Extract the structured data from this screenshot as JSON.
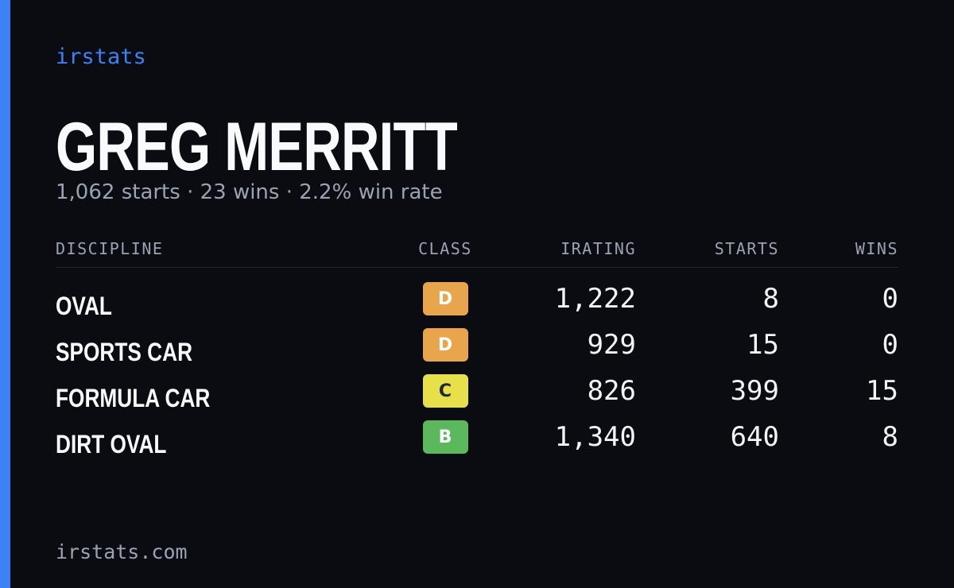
{
  "brand": "irstats",
  "player": {
    "name": "GREG MERRITT",
    "summary": "1,062 starts · 23 wins · 2.2% win rate"
  },
  "table": {
    "headers": [
      "DISCIPLINE",
      "CLASS",
      "IRATING",
      "STARTS",
      "WINS"
    ],
    "rows": [
      [
        "OVAL",
        "D",
        "1,222",
        "8",
        "0"
      ],
      [
        "SPORTS CAR",
        "D",
        "929",
        "15",
        "0"
      ],
      [
        "FORMULA CAR",
        "C",
        "826",
        "399",
        "15"
      ],
      [
        "DIRT OVAL",
        "B",
        "1,340",
        "640",
        "8"
      ]
    ]
  },
  "footer": "irstats.com"
}
